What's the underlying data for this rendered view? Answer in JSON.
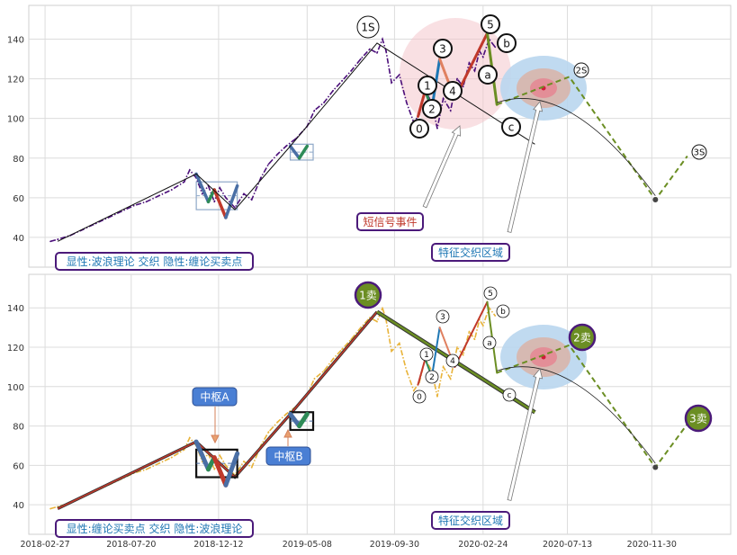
{
  "chart_data": [
    {
      "type": "line",
      "panel": "top",
      "xlim": [
        "2018-01-31",
        "2021-04-10"
      ],
      "ylim": [
        25,
        157
      ],
      "yticks": [
        40,
        60,
        80,
        100,
        120,
        140
      ],
      "grid": true,
      "series": [
        {
          "color": "#4b0f7a",
          "style": "dash-dot",
          "x": [
            "2018-03-08",
            "2018-03-20",
            "2018-04-10",
            "2018-05-01",
            "2018-05-22",
            "2018-06-12",
            "2018-07-03",
            "2018-07-24",
            "2018-08-14",
            "2018-09-04",
            "2018-09-25",
            "2018-10-16",
            "2018-10-25",
            "2018-11-05",
            "2018-11-15",
            "2018-11-25",
            "2018-12-05",
            "2018-12-14",
            "2018-12-24",
            "2019-01-08",
            "2019-01-23",
            "2019-02-05",
            "2019-02-20",
            "2019-03-05",
            "2019-03-20",
            "2019-04-03",
            "2019-04-20",
            "2019-05-08",
            "2019-05-20",
            "2019-06-05",
            "2019-06-20",
            "2019-07-05",
            "2019-07-20",
            "2019-08-05",
            "2019-08-20",
            "2019-09-01",
            "2019-09-10",
            "2019-09-16",
            "2019-09-25",
            "2019-10-08",
            "2019-10-20",
            "2019-11-01",
            "2019-11-10",
            "2019-11-20",
            "2019-12-01",
            "2019-12-10",
            "2019-12-20",
            "2020-01-01",
            "2020-01-12",
            "2020-01-22",
            "2020-02-01",
            "2020-02-10",
            "2020-02-18",
            "2020-02-24",
            "2020-03-05",
            "2020-03-15"
          ],
          "y": [
            38,
            39,
            41,
            44,
            47,
            50,
            53,
            56,
            58,
            61,
            64,
            68,
            74,
            70,
            62,
            66,
            58,
            65,
            60,
            55,
            62,
            59,
            70,
            77,
            82,
            86,
            90,
            96,
            104,
            108,
            114,
            119,
            124,
            130,
            135,
            133,
            140,
            134,
            118,
            122,
            108,
            98,
            102,
            114,
            108,
            95,
            110,
            104,
            120,
            116,
            128,
            124,
            134,
            131,
            140,
            136
          ]
        }
      ],
      "trend_line": {
        "color": "#111111",
        "x": [
          "2018-03-20",
          "2018-11-05",
          "2019-01-08",
          "2019-04-10",
          "2019-09-01",
          "2020-05-20"
        ],
        "y": [
          38,
          72,
          54,
          86,
          138,
          87
        ]
      },
      "wave_segments": [
        {
          "color": "#c0392b",
          "x": [
            "2019-11-08",
            "2019-11-20"
          ],
          "y": [
            101,
            114
          ]
        },
        {
          "color": "#2e8b57",
          "x": [
            "2019-11-20",
            "2019-12-01"
          ],
          "y": [
            114,
            105
          ]
        },
        {
          "color": "#1f77b4",
          "x": [
            "2019-12-01",
            "2019-12-14"
          ],
          "y": [
            105,
            130
          ]
        },
        {
          "color": "#e08060",
          "x": [
            "2019-12-14",
            "2020-01-08"
          ],
          "y": [
            130,
            110
          ]
        },
        {
          "color": "#c0392b",
          "x": [
            "2020-01-08",
            "2020-03-02"
          ],
          "y": [
            110,
            143
          ]
        },
        {
          "color": "#6b8e23",
          "x": [
            "2020-03-02",
            "2020-03-18"
          ],
          "y": [
            143,
            107
          ]
        }
      ],
      "projection": {
        "color": "#6b8e23",
        "style": "dashed",
        "x": [
          "2020-03-18",
          "2020-07-16",
          "2020-12-06",
          "2021-01-28"
        ],
        "y": [
          107,
          121,
          59,
          81
        ]
      },
      "arc": {
        "x": [
          "2020-03-18",
          "2020-07-16",
          "2020-12-06"
        ],
        "y": [
          108,
          112,
          61
        ]
      },
      "pivot_boxes": [
        {
          "x": [
            "2018-11-05",
            "2019-01-12"
          ],
          "y": [
            54,
            68
          ],
          "color": "#8fa8c8"
        },
        {
          "x": [
            "2019-04-10",
            "2019-05-18"
          ],
          "y": [
            79,
            87
          ],
          "color": "#8fa8c8"
        }
      ],
      "circle_labels": [
        "1S",
        "0",
        "1",
        "2",
        "3",
        "4",
        "5",
        "a",
        "b",
        "c",
        "2S",
        "3S"
      ],
      "text_boxes": [
        "短信号事件",
        "特征交织区域",
        "显性:波浪理论 交织 隐性:缠论买卖点"
      ]
    },
    {
      "type": "line",
      "panel": "bottom",
      "xlim": [
        "2018-01-31",
        "2021-04-10"
      ],
      "ylim": [
        25,
        157
      ],
      "yticks": [
        40,
        60,
        80,
        100,
        120,
        140
      ],
      "xticks": [
        "2018-02-27",
        "2018-07-20",
        "2018-12-12",
        "2019-05-08",
        "2019-09-30",
        "2020-02-24",
        "2020-07-13",
        "2020-11-30"
      ],
      "grid": true,
      "series": [
        {
          "color": "#e8b339",
          "style": "dash-dot",
          "x": [
            "2018-03-08",
            "2018-03-20",
            "2018-04-10",
            "2018-05-01",
            "2018-05-22",
            "2018-06-12",
            "2018-07-03",
            "2018-07-24",
            "2018-08-14",
            "2018-09-04",
            "2018-09-25",
            "2018-10-16",
            "2018-10-25",
            "2018-11-05",
            "2018-11-15",
            "2018-11-25",
            "2018-12-05",
            "2018-12-14",
            "2018-12-24",
            "2019-01-08",
            "2019-01-23",
            "2019-02-05",
            "2019-02-20",
            "2019-03-05",
            "2019-03-20",
            "2019-04-03",
            "2019-04-20",
            "2019-05-08",
            "2019-05-20",
            "2019-06-05",
            "2019-06-20",
            "2019-07-05",
            "2019-07-20",
            "2019-08-05",
            "2019-08-20",
            "2019-09-01",
            "2019-09-10",
            "2019-09-16",
            "2019-09-25",
            "2019-10-08",
            "2019-10-20",
            "2019-11-01",
            "2019-11-10",
            "2019-11-20",
            "2019-12-01",
            "2019-12-10",
            "2019-12-20",
            "2020-01-01",
            "2020-01-12",
            "2020-01-22",
            "2020-02-01",
            "2020-02-10",
            "2020-02-18",
            "2020-02-24",
            "2020-03-05",
            "2020-03-15"
          ],
          "y": [
            38,
            39,
            41,
            44,
            47,
            50,
            53,
            56,
            58,
            61,
            64,
            68,
            74,
            70,
            62,
            66,
            58,
            65,
            60,
            55,
            62,
            59,
            70,
            77,
            82,
            86,
            90,
            96,
            104,
            108,
            114,
            119,
            124,
            130,
            135,
            133,
            140,
            134,
            118,
            122,
            108,
            98,
            102,
            114,
            108,
            95,
            110,
            104,
            120,
            116,
            128,
            124,
            134,
            131,
            140,
            136
          ]
        }
      ],
      "stroke_line": {
        "color": "#c0392b",
        "x": [
          "2018-03-20",
          "2018-11-05",
          "2019-01-08",
          "2019-04-10",
          "2019-09-01"
        ],
        "y": [
          38,
          72,
          54,
          86,
          138
        ]
      },
      "sell_line": {
        "color": "#6b8e23",
        "x": [
          "2019-09-01",
          "2020-05-20"
        ],
        "y": [
          138,
          87
        ]
      },
      "wave_segments": [
        {
          "color": "#c0392b",
          "x": [
            "2019-11-08",
            "2019-11-20"
          ],
          "y": [
            101,
            114
          ]
        },
        {
          "color": "#2e8b57",
          "x": [
            "2019-11-20",
            "2019-12-01"
          ],
          "y": [
            114,
            105
          ]
        },
        {
          "color": "#1f77b4",
          "x": [
            "2019-12-01",
            "2019-12-14"
          ],
          "y": [
            105,
            130
          ]
        },
        {
          "color": "#e08060",
          "x": [
            "2019-12-14",
            "2020-01-08"
          ],
          "y": [
            130,
            110
          ]
        },
        {
          "color": "#c0392b",
          "x": [
            "2020-01-08",
            "2020-03-02"
          ],
          "y": [
            110,
            143
          ]
        },
        {
          "color": "#6b8e23",
          "x": [
            "2020-03-02",
            "2020-03-18"
          ],
          "y": [
            143,
            107
          ]
        }
      ],
      "projection": {
        "color": "#6b8e23",
        "style": "dashed",
        "x": [
          "2020-03-18",
          "2020-07-16",
          "2020-12-06",
          "2021-01-28"
        ],
        "y": [
          107,
          121,
          59,
          81
        ]
      },
      "arc": {
        "x": [
          "2020-03-18",
          "2020-07-16",
          "2020-12-06"
        ],
        "y": [
          108,
          112,
          61
        ]
      },
      "pivot_boxes": [
        {
          "x": [
            "2018-11-05",
            "2019-01-12"
          ],
          "y": [
            54,
            68
          ],
          "label": "中枢A",
          "color": "#111111"
        },
        {
          "x": [
            "2019-04-10",
            "2019-05-18"
          ],
          "y": [
            78,
            87
          ],
          "label": "中枢B",
          "color": "#111111"
        }
      ],
      "circle_labels": [
        "0",
        "1",
        "2",
        "3",
        "4",
        "5",
        "a",
        "b",
        "c"
      ],
      "sell_points": [
        "1卖",
        "2卖",
        "3卖"
      ],
      "text_boxes": [
        "特征交织区域",
        "显性:缠论买卖点 交织 隐性:波浪理论"
      ]
    }
  ]
}
